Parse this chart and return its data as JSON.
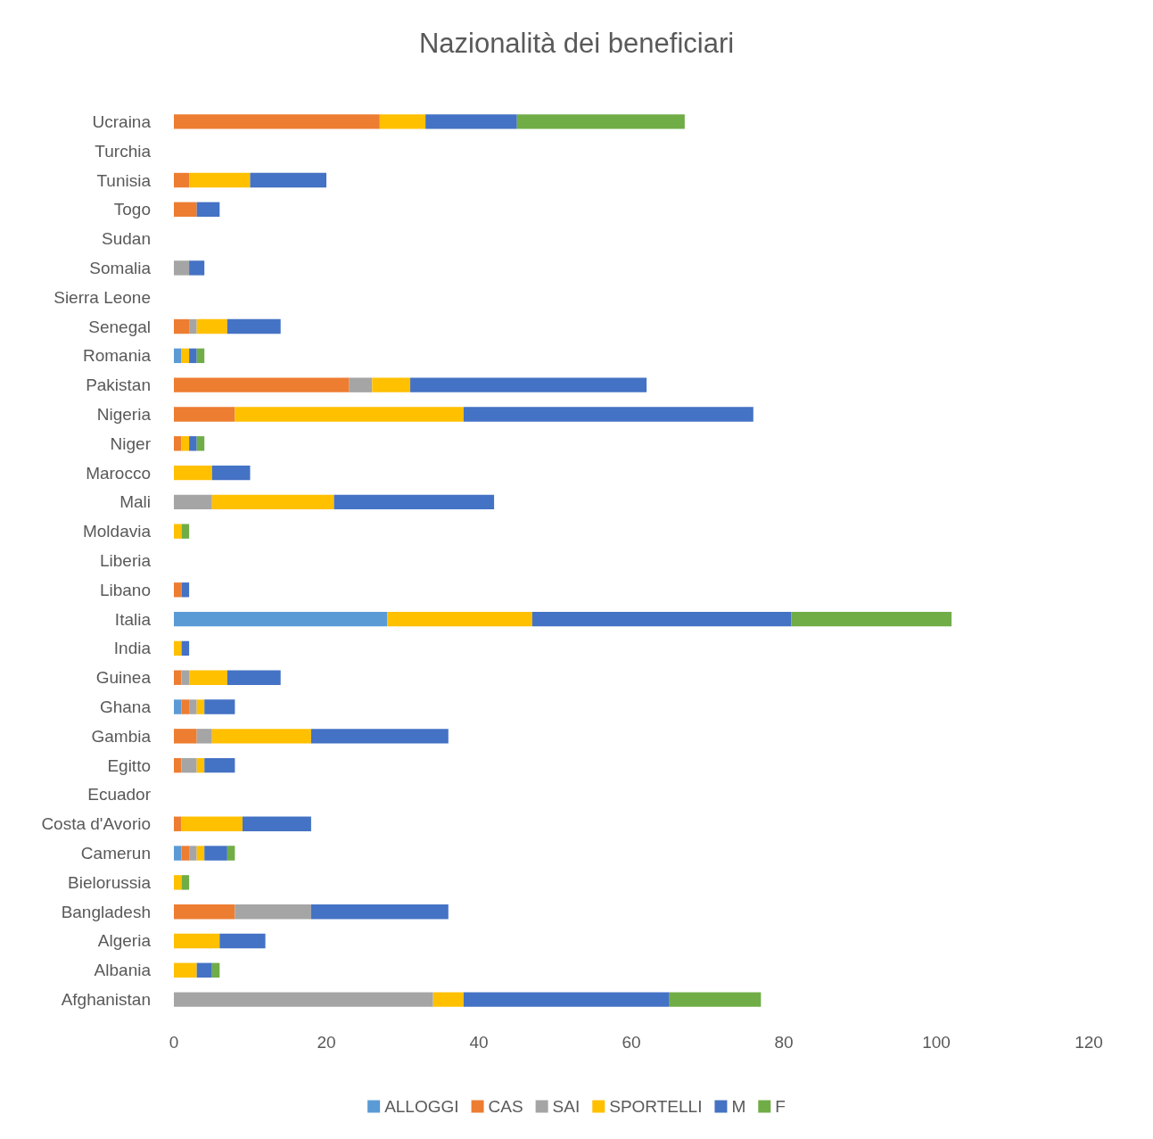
{
  "chart_data": {
    "type": "bar",
    "orientation": "horizontal",
    "stacked": true,
    "title": "Nazionalità dei beneficiari",
    "categories": [
      "Ucraina",
      "Turchia",
      "Tunisia",
      "Togo",
      "Sudan",
      "Somalia",
      "Sierra Leone",
      "Senegal",
      "Romania",
      "Pakistan",
      "Nigeria",
      "Niger",
      "Marocco",
      "Mali",
      "Moldavia",
      "Liberia",
      "Libano",
      "Italia",
      "India",
      "Guinea",
      "Ghana",
      "Gambia",
      "Egitto",
      "Ecuador",
      "Costa d'Avorio",
      "Camerun",
      "Bielorussia",
      "Bangladesh",
      "Algeria",
      "Albania",
      "Afghanistan"
    ],
    "series": [
      {
        "name": "ALLOGGI",
        "color": "#5b9bd5",
        "values": [
          0,
          0,
          0,
          0,
          0,
          0,
          0,
          0,
          1,
          0,
          0,
          0,
          0,
          0,
          0,
          0,
          0,
          28,
          0,
          0,
          1,
          0,
          0,
          0,
          0,
          1,
          0,
          0,
          0,
          0,
          0
        ]
      },
      {
        "name": "CAS",
        "color": "#ed7d31",
        "values": [
          27,
          0,
          2,
          3,
          0,
          0,
          0,
          2,
          0,
          23,
          8,
          1,
          0,
          0,
          0,
          0,
          1,
          0,
          0,
          1,
          1,
          3,
          1,
          0,
          1,
          1,
          0,
          8,
          0,
          0,
          0
        ]
      },
      {
        "name": "SAI",
        "color": "#a5a5a5",
        "values": [
          0,
          0,
          0,
          0,
          0,
          2,
          0,
          1,
          0,
          3,
          0,
          0,
          0,
          5,
          0,
          0,
          0,
          0,
          0,
          1,
          1,
          2,
          2,
          0,
          0,
          1,
          0,
          10,
          0,
          0,
          34
        ]
      },
      {
        "name": "SPORTELLI",
        "color": "#ffc000",
        "values": [
          6,
          0,
          8,
          0,
          0,
          0,
          0,
          4,
          1,
          5,
          30,
          1,
          5,
          16,
          1,
          0,
          0,
          19,
          1,
          5,
          1,
          13,
          1,
          0,
          8,
          1,
          1,
          0,
          6,
          3,
          4
        ]
      },
      {
        "name": "M",
        "color": "#4472c4",
        "values": [
          12,
          0,
          10,
          3,
          0,
          2,
          0,
          7,
          1,
          31,
          38,
          1,
          5,
          21,
          0,
          0,
          1,
          34,
          1,
          7,
          4,
          18,
          4,
          0,
          9,
          3,
          0,
          18,
          6,
          2,
          27
        ]
      },
      {
        "name": "F",
        "color": "#70ad47",
        "values": [
          22,
          0,
          0,
          0,
          0,
          0,
          0,
          0,
          1,
          0,
          0,
          1,
          0,
          0,
          1,
          0,
          0,
          21,
          0,
          0,
          0,
          0,
          0,
          0,
          0,
          1,
          1,
          0,
          0,
          1,
          12
        ]
      }
    ],
    "xlim": [
      0,
      120
    ],
    "xticks": [
      0,
      20,
      40,
      60,
      80,
      100,
      120
    ],
    "grid": false,
    "legend": "bottom"
  }
}
